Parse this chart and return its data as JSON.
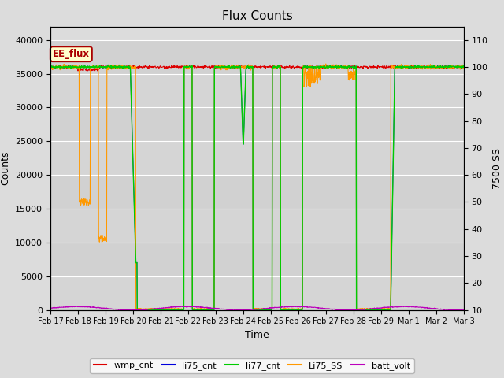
{
  "title": "Flux Counts",
  "xlabel": "Time",
  "ylabel_left": "Counts",
  "ylabel_right": "7500 SS",
  "left_ylim": [
    0,
    42000
  ],
  "right_ylim": [
    10,
    115
  ],
  "left_yticks": [
    0,
    5000,
    10000,
    15000,
    20000,
    25000,
    30000,
    35000,
    40000
  ],
  "right_yticks": [
    10,
    20,
    30,
    40,
    50,
    60,
    70,
    80,
    90,
    100,
    110
  ],
  "background_color": "#dcdcdc",
  "annotation_text": "EE_flux",
  "annotation_color": "#aa0000",
  "annotation_bg": "#ffffcc",
  "line_colors": {
    "wmp_cnt": "#dd0000",
    "li75_cnt": "#0000dd",
    "li77_cnt": "#00cc00",
    "Li75_SS": "#ff9900",
    "batt_volt": "#bb00bb"
  },
  "x_tick_labels": [
    "Feb 17",
    "Feb 18",
    "Feb 19",
    "Feb 20",
    "Feb 21",
    "Feb 22",
    "Feb 23",
    "Feb 24",
    "Feb 25",
    "Feb 26",
    "Feb 27",
    "Feb 28",
    "Feb 29",
    "Mar 1",
    "Mar 2",
    "Mar 3"
  ],
  "n_days": 15,
  "n_points": 1500,
  "nominal": 36000,
  "batt_max": 1200,
  "batt_amplitude": 500,
  "batt_freq": 3.8
}
